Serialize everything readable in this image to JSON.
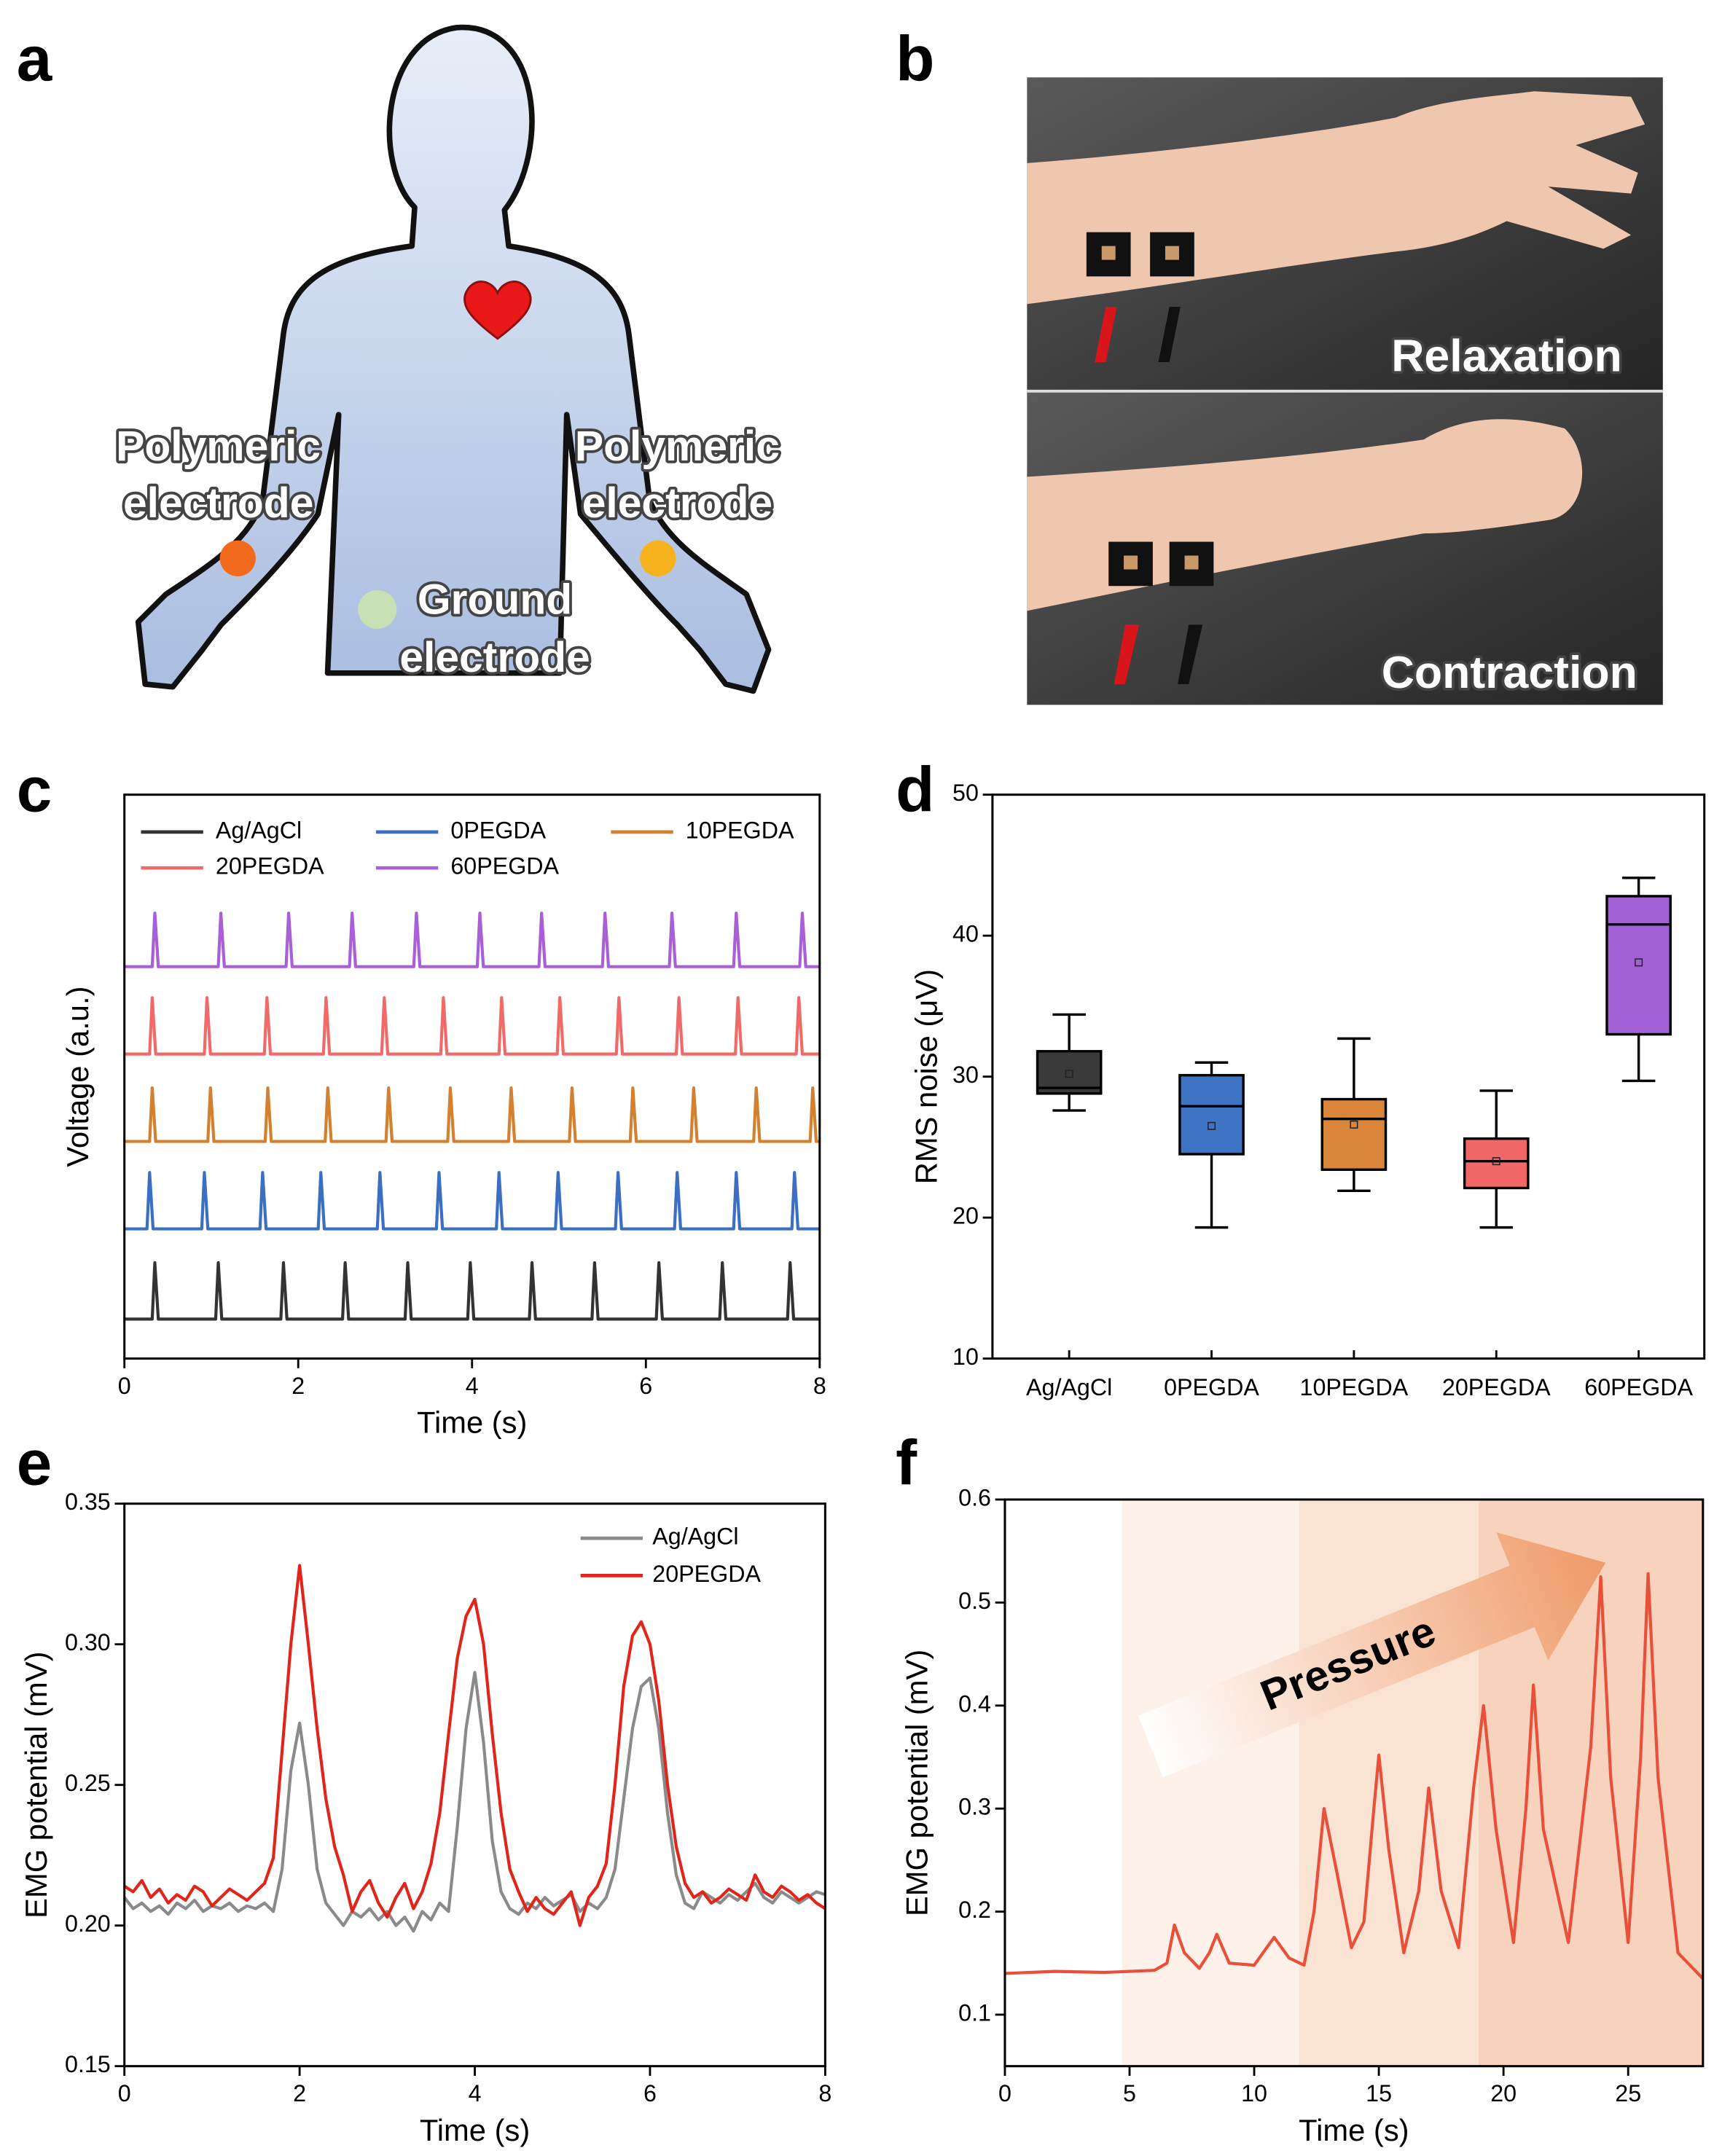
{
  "panel_labels": [
    "a",
    "b",
    "c",
    "d",
    "e",
    "f"
  ],
  "diagram": {
    "left_electrode": [
      "Polymeric",
      "electrode"
    ],
    "right_electrode": [
      "Polymeric",
      "electrode"
    ],
    "ground_electrode": [
      "Ground",
      "electrode"
    ]
  },
  "photos": {
    "top_caption": "Relaxation",
    "bottom_caption": "Contraction"
  },
  "chart_data": [
    {
      "type": "line",
      "xlabel": "Time (s)",
      "ylabel": "Voltage (a.u.)",
      "xlim": [
        0,
        8
      ],
      "xticks": [
        0,
        2,
        4,
        6,
        8
      ],
      "ylim": [
        0,
        10
      ],
      "legend": "top",
      "series": [
        {
          "name": "Ag/AgCl",
          "color": "#333333",
          "x": [
            0,
            0.32,
            0.35,
            0.39,
            1.05,
            1.08,
            1.12,
            1.8,
            1.83,
            1.87,
            2.51,
            2.54,
            2.58,
            3.23,
            3.26,
            3.3,
            3.95,
            3.98,
            4.02,
            4.66,
            4.69,
            4.73,
            5.38,
            5.41,
            5.45,
            6.12,
            6.15,
            6.19,
            6.85,
            6.88,
            6.92,
            7.63,
            7.66,
            7.7,
            8
          ],
          "values": [
            0.7,
            0.7,
            1.7,
            0.7,
            0.7,
            1.7,
            0.7,
            0.7,
            1.7,
            0.7,
            0.7,
            1.7,
            0.7,
            0.7,
            1.7,
            0.7,
            0.7,
            1.7,
            0.7,
            0.7,
            1.7,
            0.7,
            0.7,
            1.7,
            0.7,
            0.7,
            1.7,
            0.7,
            0.7,
            1.7,
            0.7,
            0.7,
            1.7,
            0.7,
            0.7
          ]
        },
        {
          "name": "0PEGDA",
          "color": "#3b6fc4",
          "x": [
            0,
            0.26,
            0.29,
            0.33,
            0.89,
            0.92,
            0.96,
            1.56,
            1.59,
            1.63,
            2.23,
            2.26,
            2.3,
            2.91,
            2.94,
            2.98,
            3.59,
            3.62,
            3.66,
            4.28,
            4.31,
            4.35,
            4.96,
            4.99,
            5.03,
            5.65,
            5.68,
            5.72,
            6.33,
            6.36,
            6.4,
            7.01,
            7.04,
            7.08,
            7.68,
            7.71,
            7.75,
            8
          ],
          "values": [
            2.3,
            2.3,
            3.3,
            2.3,
            2.3,
            3.3,
            2.3,
            2.3,
            3.3,
            2.3,
            2.3,
            3.3,
            2.3,
            2.3,
            3.3,
            2.3,
            2.3,
            3.3,
            2.3,
            2.3,
            3.3,
            2.3,
            2.3,
            3.3,
            2.3,
            2.3,
            3.3,
            2.3,
            2.3,
            3.3,
            2.3,
            2.3,
            3.3,
            2.3,
            2.3,
            3.3,
            2.3,
            2.3
          ]
        },
        {
          "name": "10PEGDA",
          "color": "#d4812f",
          "x": [
            0,
            0.29,
            0.32,
            0.36,
            0.96,
            0.99,
            1.03,
            1.62,
            1.65,
            1.69,
            2.31,
            2.34,
            2.38,
            3.01,
            3.04,
            3.08,
            3.72,
            3.75,
            3.79,
            4.42,
            4.45,
            4.49,
            5.12,
            5.15,
            5.19,
            5.82,
            5.85,
            5.89,
            6.52,
            6.55,
            6.59,
            7.24,
            7.27,
            7.31,
            7.89,
            7.92,
            7.96,
            8
          ],
          "values": [
            3.85,
            3.85,
            4.8,
            3.85,
            3.85,
            4.8,
            3.85,
            3.85,
            4.8,
            3.85,
            3.85,
            4.8,
            3.85,
            3.85,
            4.8,
            3.85,
            3.85,
            4.8,
            3.85,
            3.85,
            4.8,
            3.85,
            3.85,
            4.8,
            3.85,
            3.85,
            4.8,
            3.85,
            3.85,
            4.8,
            3.85,
            3.85,
            4.8,
            3.85,
            3.85,
            4.8,
            3.85,
            3.85
          ]
        },
        {
          "name": "20PEGDA",
          "color": "#f06a6a",
          "x": [
            0,
            0.29,
            0.32,
            0.36,
            0.92,
            0.95,
            0.99,
            1.61,
            1.64,
            1.68,
            2.29,
            2.32,
            2.36,
            2.96,
            2.99,
            3.03,
            3.64,
            3.67,
            3.71,
            4.31,
            4.34,
            4.38,
            4.98,
            5.01,
            5.05,
            5.66,
            5.69,
            5.73,
            6.35,
            6.38,
            6.42,
            7.03,
            7.06,
            7.1,
            7.73,
            7.76,
            7.8,
            8
          ],
          "values": [
            5.4,
            5.4,
            6.4,
            5.4,
            5.4,
            6.4,
            5.4,
            5.4,
            6.4,
            5.4,
            5.4,
            6.4,
            5.4,
            5.4,
            6.4,
            5.4,
            5.4,
            6.4,
            5.4,
            5.4,
            6.4,
            5.4,
            5.4,
            6.4,
            5.4,
            5.4,
            6.4,
            5.4,
            5.4,
            6.4,
            5.4,
            5.4,
            6.4,
            5.4,
            5.4,
            6.4,
            5.4,
            5.4
          ]
        },
        {
          "name": "60PEGDA",
          "color": "#a95fd8",
          "x": [
            0,
            0.32,
            0.35,
            0.39,
            1.08,
            1.11,
            1.15,
            1.86,
            1.89,
            1.93,
            2.59,
            2.62,
            2.66,
            3.33,
            3.36,
            3.4,
            4.06,
            4.09,
            4.13,
            4.77,
            4.8,
            4.84,
            5.5,
            5.53,
            5.57,
            6.27,
            6.3,
            6.34,
            7.01,
            7.04,
            7.08,
            7.77,
            7.8,
            7.84,
            8
          ],
          "values": [
            6.95,
            6.95,
            7.9,
            6.95,
            6.95,
            7.9,
            6.95,
            6.95,
            7.9,
            6.95,
            6.95,
            7.9,
            6.95,
            6.95,
            7.9,
            6.95,
            6.95,
            7.9,
            6.95,
            6.95,
            7.9,
            6.95,
            6.95,
            7.9,
            6.95,
            6.95,
            7.9,
            6.95,
            6.95,
            7.9,
            6.95,
            6.95,
            7.9,
            6.95,
            6.95
          ]
        }
      ]
    },
    {
      "type": "box",
      "ylabel": "RMS noise (μV)",
      "categories": [
        "Ag/AgCl",
        "0PEGDA",
        "10PEGDA",
        "20PEGDA",
        "60PEGDA"
      ],
      "ylim": [
        10,
        50
      ],
      "yticks": [
        10,
        20,
        30,
        40,
        50
      ],
      "boxes": [
        {
          "color": "#3a3a3a",
          "min": 27.6,
          "q1": 28.8,
          "median": 29.2,
          "q3": 31.8,
          "max": 34.4,
          "mean": 30.2
        },
        {
          "color": "#3f73c3",
          "min": 19.3,
          "q1": 24.5,
          "median": 27.9,
          "q3": 30.1,
          "max": 31.0,
          "mean": 26.5
        },
        {
          "color": "#d9863b",
          "min": 21.9,
          "q1": 23.4,
          "median": 27.0,
          "q3": 28.4,
          "max": 32.7,
          "mean": 26.6
        },
        {
          "color": "#f26868",
          "min": 19.3,
          "q1": 22.1,
          "median": 24.0,
          "q3": 25.6,
          "max": 29.0,
          "mean": 24.0
        },
        {
          "color": "#a35fd6",
          "min": 29.7,
          "q1": 33.0,
          "median": 40.8,
          "q3": 42.8,
          "max": 44.1,
          "mean": 38.1
        }
      ]
    },
    {
      "type": "line",
      "xlabel": "Time (s)",
      "ylabel": "EMG potential (mV)",
      "xlim": [
        0,
        8
      ],
      "xticks": [
        0,
        2,
        4,
        6,
        8
      ],
      "ylim": [
        0.15,
        0.35
      ],
      "yticks": [
        {
          "value": 0.15,
          "label": "0.15"
        },
        {
          "value": 0.2,
          "label": "0.20"
        },
        {
          "value": 0.25,
          "label": "0.25"
        },
        {
          "value": 0.3,
          "label": "0.30"
        },
        {
          "value": 0.35,
          "label": "0.35"
        }
      ],
      "legend": "upper right",
      "x": [
        0,
        0.1,
        0.2,
        0.3,
        0.4,
        0.5,
        0.6,
        0.7,
        0.8,
        0.9,
        1,
        1.1,
        1.2,
        1.3,
        1.4,
        1.5,
        1.6,
        1.7,
        1.8,
        1.9,
        2,
        2.1,
        2.2,
        2.3,
        2.4,
        2.5,
        2.6,
        2.7,
        2.8,
        2.9,
        3,
        3.1,
        3.2,
        3.3,
        3.4,
        3.5,
        3.6,
        3.7,
        3.8,
        3.9,
        4,
        4.1,
        4.2,
        4.3,
        4.4,
        4.5,
        4.6,
        4.7,
        4.8,
        4.9,
        5,
        5.1,
        5.2,
        5.3,
        5.4,
        5.5,
        5.6,
        5.7,
        5.8,
        5.9,
        6,
        6.1,
        6.2,
        6.3,
        6.4,
        6.5,
        6.6,
        6.7,
        6.8,
        6.9,
        7,
        7.1,
        7.2,
        7.3,
        7.4,
        7.5,
        7.6,
        7.7,
        7.8,
        7.9,
        8
      ],
      "series": [
        {
          "name": "Ag/AgCl",
          "color": "#8a8a8a",
          "values": [
            0.21,
            0.206,
            0.208,
            0.205,
            0.207,
            0.204,
            0.208,
            0.206,
            0.209,
            0.205,
            0.207,
            0.206,
            0.208,
            0.205,
            0.207,
            0.206,
            0.208,
            0.205,
            0.22,
            0.255,
            0.272,
            0.25,
            0.22,
            0.208,
            0.204,
            0.2,
            0.205,
            0.203,
            0.206,
            0.202,
            0.205,
            0.2,
            0.203,
            0.198,
            0.205,
            0.202,
            0.208,
            0.205,
            0.235,
            0.27,
            0.29,
            0.265,
            0.23,
            0.212,
            0.206,
            0.204,
            0.208,
            0.206,
            0.21,
            0.207,
            0.209,
            0.211,
            0.205,
            0.208,
            0.206,
            0.21,
            0.22,
            0.245,
            0.27,
            0.285,
            0.288,
            0.27,
            0.24,
            0.218,
            0.208,
            0.206,
            0.212,
            0.21,
            0.208,
            0.211,
            0.209,
            0.212,
            0.215,
            0.21,
            0.208,
            0.212,
            0.21,
            0.208,
            0.21,
            0.212,
            0.211
          ]
        },
        {
          "name": "20PEGDA",
          "color": "#e0251b",
          "values": [
            0.214,
            0.212,
            0.216,
            0.21,
            0.213,
            0.208,
            0.211,
            0.209,
            0.214,
            0.212,
            0.207,
            0.21,
            0.213,
            0.211,
            0.209,
            0.212,
            0.215,
            0.224,
            0.262,
            0.3,
            0.328,
            0.3,
            0.27,
            0.245,
            0.228,
            0.218,
            0.205,
            0.212,
            0.216,
            0.208,
            0.203,
            0.21,
            0.215,
            0.206,
            0.212,
            0.222,
            0.24,
            0.268,
            0.295,
            0.31,
            0.316,
            0.3,
            0.268,
            0.24,
            0.22,
            0.212,
            0.205,
            0.21,
            0.206,
            0.204,
            0.208,
            0.212,
            0.2,
            0.21,
            0.214,
            0.222,
            0.25,
            0.285,
            0.303,
            0.308,
            0.3,
            0.28,
            0.25,
            0.228,
            0.215,
            0.21,
            0.212,
            0.208,
            0.21,
            0.213,
            0.211,
            0.209,
            0.218,
            0.212,
            0.21,
            0.214,
            0.212,
            0.209,
            0.211,
            0.208,
            0.206
          ]
        }
      ]
    },
    {
      "type": "line",
      "xlabel": "Time (s)",
      "ylabel": "EMG potential (mV)",
      "xlim": [
        0,
        28
      ],
      "xticks": [
        0,
        5,
        10,
        15,
        20,
        25
      ],
      "ylim": [
        0.05,
        0.6
      ],
      "yticks": [
        0.1,
        0.2,
        0.3,
        0.4,
        0.5,
        0.6
      ],
      "annotation": "Pressure",
      "shaded_regions": [
        {
          "range": [
            4.7,
            11.8
          ],
          "color": "#fdf1ea"
        },
        {
          "range": [
            11.8,
            19
          ],
          "color": "#fbe3d4"
        },
        {
          "range": [
            19,
            28
          ],
          "color": "#f7d2bc"
        }
      ],
      "x": [
        0,
        2,
        4,
        6,
        6.5,
        6.8,
        7.2,
        7.8,
        8.2,
        8.5,
        9,
        10,
        10.5,
        10.8,
        11.4,
        12,
        12.4,
        12.8,
        13.3,
        13.9,
        14.4,
        14.8,
        15,
        15.4,
        16,
        16.6,
        17,
        17.5,
        18.2,
        18.8,
        19.2,
        19.7,
        20.4,
        20.9,
        21.2,
        21.6,
        22.6,
        23.5,
        23.9,
        24.3,
        25,
        25.5,
        25.8,
        26.2,
        27,
        28
      ],
      "series": [
        {
          "color": "#e8503a",
          "values": [
            0.14,
            0.142,
            0.141,
            0.143,
            0.15,
            0.187,
            0.16,
            0.145,
            0.16,
            0.178,
            0.15,
            0.148,
            0.165,
            0.175,
            0.155,
            0.148,
            0.2,
            0.3,
            0.24,
            0.165,
            0.19,
            0.3,
            0.352,
            0.26,
            0.16,
            0.22,
            0.32,
            0.22,
            0.165,
            0.32,
            0.4,
            0.28,
            0.17,
            0.3,
            0.42,
            0.28,
            0.17,
            0.36,
            0.525,
            0.33,
            0.17,
            0.35,
            0.528,
            0.33,
            0.16,
            0.135
          ]
        }
      ]
    }
  ]
}
